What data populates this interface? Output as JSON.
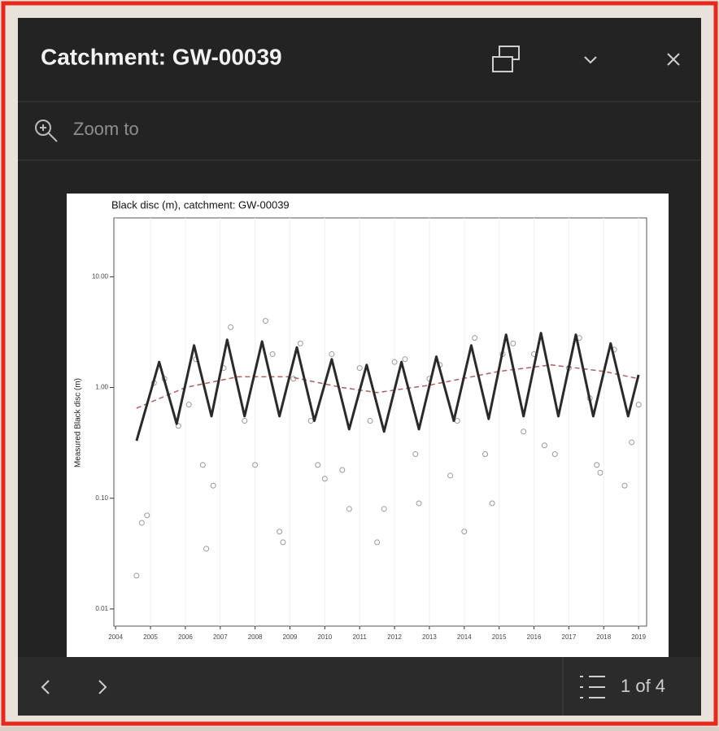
{
  "header": {
    "title": "Catchment: GW-00039"
  },
  "actions": {
    "zoom_to": "Zoom to"
  },
  "footer": {
    "pager": "1 of 4"
  },
  "chart_data": {
    "type": "line",
    "title": "Black disc (m), catchment: GW-00039",
    "y_label": "Measured Black disc (m)",
    "log_y": true,
    "xlim": [
      2003.95,
      2019.23
    ],
    "xticks": [
      2004,
      2005,
      2006,
      2007,
      2008,
      2009,
      2010,
      2011,
      2012,
      2013,
      2014,
      2015,
      2016,
      2017,
      2018,
      2019
    ],
    "ylim": [
      0.007,
      34
    ],
    "yticks": [
      0.01,
      {
        "value": 0.1,
        "label": "0.10"
      },
      {
        "value": 1,
        "label": "1.00"
      },
      {
        "value": 10,
        "label": "10.00"
      }
    ],
    "series": [
      {
        "style": "points",
        "color": "#9a9a9a",
        "x": [
          2004.6,
          2004.75,
          2004.9,
          2005.1,
          2005.4,
          2005.8,
          2006.1,
          2006.3,
          2006.5,
          2006.6,
          2006.8,
          2007.1,
          2007.3,
          2007.7,
          2008.0,
          2008.3,
          2008.5,
          2008.7,
          2008.8,
          2009.1,
          2009.3,
          2009.6,
          2009.8,
          2010.0,
          2010.2,
          2010.5,
          2010.7,
          2011.0,
          2011.3,
          2011.5,
          2011.7,
          2012.0,
          2012.3,
          2012.6,
          2012.7,
          2013.0,
          2013.3,
          2013.6,
          2013.8,
          2014.0,
          2014.3,
          2014.6,
          2014.8,
          2015.1,
          2015.4,
          2015.7,
          2016.0,
          2016.3,
          2016.6,
          2017.0,
          2017.3,
          2017.6,
          2017.8,
          2017.9,
          2018.3,
          2018.6,
          2018.8,
          2019.0
        ],
        "values": [
          0.02,
          0.06,
          0.07,
          1.1,
          1.2,
          0.45,
          0.7,
          1.8,
          0.2,
          0.035,
          0.13,
          1.5,
          3.5,
          0.5,
          0.2,
          4.0,
          2.0,
          0.05,
          0.04,
          1.2,
          2.5,
          0.5,
          0.2,
          0.15,
          2.0,
          0.18,
          0.08,
          1.5,
          0.5,
          0.04,
          0.08,
          1.7,
          1.8,
          0.25,
          0.09,
          1.2,
          1.6,
          0.16,
          0.5,
          0.05,
          2.8,
          0.25,
          0.09,
          2.0,
          2.5,
          0.4,
          2.0,
          0.3,
          0.25,
          1.5,
          2.8,
          0.8,
          0.2,
          0.17,
          2.2,
          0.13,
          0.32,
          0.7
        ]
      },
      {
        "style": "dashed",
        "color": "#b06060",
        "x": [
          2004.6,
          2006,
          2007.5,
          2009,
          2010.5,
          2011.5,
          2013,
          2015,
          2016.5,
          2018,
          2019
        ],
        "values": [
          0.65,
          1.0,
          1.25,
          1.25,
          1.0,
          0.9,
          1.05,
          1.4,
          1.6,
          1.4,
          1.2
        ]
      },
      {
        "style": "line",
        "color": "#2a2a2a",
        "x": [
          2004.6,
          2005.25,
          2005.75,
          2006.25,
          2006.75,
          2007.2,
          2007.7,
          2008.2,
          2008.7,
          2009.2,
          2009.7,
          2010.2,
          2010.7,
          2011.2,
          2011.7,
          2012.2,
          2012.7,
          2013.2,
          2013.7,
          2014.2,
          2014.7,
          2015.2,
          2015.7,
          2016.2,
          2016.7,
          2017.2,
          2017.7,
          2018.2,
          2018.7,
          2019.0
        ],
        "values": [
          0.33,
          1.7,
          0.47,
          2.4,
          0.55,
          2.7,
          0.55,
          2.6,
          0.55,
          2.3,
          0.5,
          1.8,
          0.42,
          1.6,
          0.4,
          1.7,
          0.42,
          1.9,
          0.5,
          2.4,
          0.52,
          3.0,
          0.55,
          3.1,
          0.55,
          3.0,
          0.55,
          2.5,
          0.55,
          1.3
        ]
      }
    ]
  }
}
